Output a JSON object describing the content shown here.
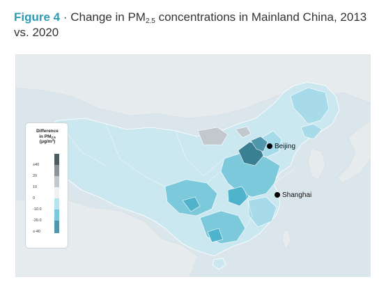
{
  "figure": {
    "label": "Figure 4",
    "separator": " · ",
    "title_pre": "Change in PM",
    "title_sub": "2.5",
    "title_post": " concentrations in Mainland China, 2013 vs. 2020"
  },
  "legend": {
    "title_line1": "Difference",
    "title_line2_pre": "in PM",
    "title_line2_sub": "2.5",
    "title_line3_pre": "(μg/m",
    "title_line3_sup": "3",
    "title_line3_post": ")",
    "ticks": [
      "≥40",
      "20",
      "10",
      "0",
      "-10.0",
      "-20.0",
      "≤-40"
    ]
  },
  "cities": [
    {
      "name": "Beijing"
    },
    {
      "name": "Shanghai"
    }
  ],
  "colors": {
    "accent": "#2b9bb6",
    "ocean": "#dbe6ec",
    "land_other": "#e6ebee",
    "china_base": "#cbe8f0",
    "light": "#a8dbea",
    "medium": "#7cc9dc",
    "strong": "#4fb3cc",
    "darkest": "#3a7f92",
    "increase_grey": "#c2c9cd"
  }
}
